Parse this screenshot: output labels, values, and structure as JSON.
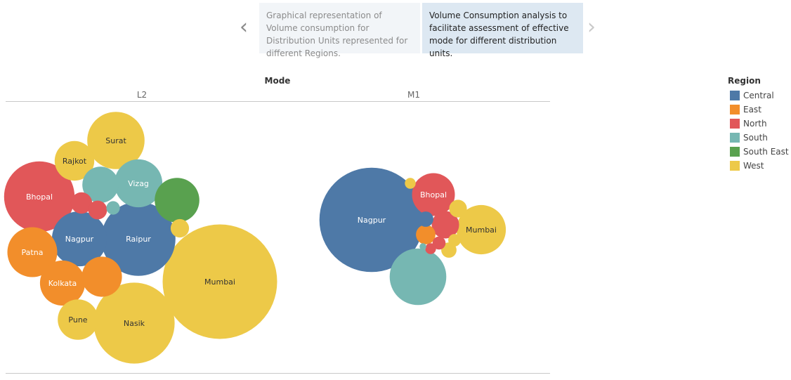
{
  "story": {
    "points": [
      {
        "text": "Graphical representation of Volume consumption for Distribution Units represented for different Regions.",
        "active": false
      },
      {
        "text": "Volume Consumption analysis to facilitate assessment of effective mode for different distribution units.",
        "active": true
      }
    ],
    "prev_arrow": "‹",
    "next_arrow": "›"
  },
  "colors": {
    "Central": "#4e79a7",
    "East": "#f28e2b",
    "North": "#e15759",
    "South": "#76b7b2",
    "South East": "#59a14f",
    "West": "#edc948"
  },
  "chart_data": {
    "type": "packed_bubble",
    "column_header": "Mode",
    "panels": [
      "L2",
      "M1"
    ],
    "legend": {
      "title": "Region",
      "position": "right",
      "entries": [
        "Central",
        "East",
        "North",
        "South",
        "South East",
        "West"
      ]
    },
    "bubbles": [
      {
        "panel": "L2",
        "label": "Mumbai",
        "region": "West",
        "value": 100
      },
      {
        "panel": "L2",
        "label": "Raipur",
        "region": "Central",
        "value": 42
      },
      {
        "panel": "L2",
        "label": "Nasik",
        "region": "West",
        "value": 50
      },
      {
        "panel": "L2",
        "label": "Bhopal",
        "region": "North",
        "value": 38
      },
      {
        "panel": "L2",
        "label": "Surat",
        "region": "West",
        "value": 25
      },
      {
        "panel": "L2",
        "label": "Nagpur",
        "region": "Central",
        "value": 23
      },
      {
        "panel": "L2",
        "label": "Vizag",
        "region": "South",
        "value": 17.5
      },
      {
        "panel": "L2",
        "label": "Patna",
        "region": "East",
        "value": 19
      },
      {
        "panel": "L2",
        "label": "Kolkata",
        "region": "East",
        "value": 15.5
      },
      {
        "panel": "L2",
        "label": "Rajkot",
        "region": "West",
        "value": 12
      },
      {
        "panel": "L2",
        "label": "Pune",
        "region": "West",
        "value": 12.5
      },
      {
        "panel": "L2",
        "label": "",
        "region": "East",
        "value": 12.3
      },
      {
        "panel": "L2",
        "label": "",
        "region": "South East",
        "value": 15.2
      },
      {
        "panel": "L2",
        "label": "",
        "region": "South",
        "value": 10
      },
      {
        "panel": "L2",
        "label": "",
        "region": "North",
        "value": 3.5
      },
      {
        "panel": "L2",
        "label": "",
        "region": "North",
        "value": 2.7
      },
      {
        "panel": "L2",
        "label": "",
        "region": "South",
        "value": 1.4
      },
      {
        "panel": "L2",
        "label": "",
        "region": "West",
        "value": 2.6
      },
      {
        "panel": "M1",
        "label": "Nagpur",
        "region": "Central",
        "value": 83
      },
      {
        "panel": "M1",
        "label": "",
        "region": "South",
        "value": 24.5
      },
      {
        "panel": "M1",
        "label": "Mumbai",
        "region": "West",
        "value": 18.5
      },
      {
        "panel": "M1",
        "label": "Bhopal",
        "region": "North",
        "value": 14
      },
      {
        "panel": "M1",
        "label": "",
        "region": "North",
        "value": 5.7
      },
      {
        "panel": "M1",
        "label": "",
        "region": "East",
        "value": 2.9
      },
      {
        "panel": "M1",
        "label": "",
        "region": "West",
        "value": 2.4
      },
      {
        "panel": "M1",
        "label": "",
        "region": "Central",
        "value": 1.8
      },
      {
        "panel": "M1",
        "label": "",
        "region": "West",
        "value": 1.8
      },
      {
        "panel": "M1",
        "label": "",
        "region": "North",
        "value": 1.3
      },
      {
        "panel": "M1",
        "label": "",
        "region": "West",
        "value": 1.2
      },
      {
        "panel": "M1",
        "label": "",
        "region": "North",
        "value": 0.9
      },
      {
        "panel": "M1",
        "label": "",
        "region": "West",
        "value": 0.9
      },
      {
        "panel": "M1",
        "label": "",
        "region": "South",
        "value": 0.35
      }
    ]
  }
}
